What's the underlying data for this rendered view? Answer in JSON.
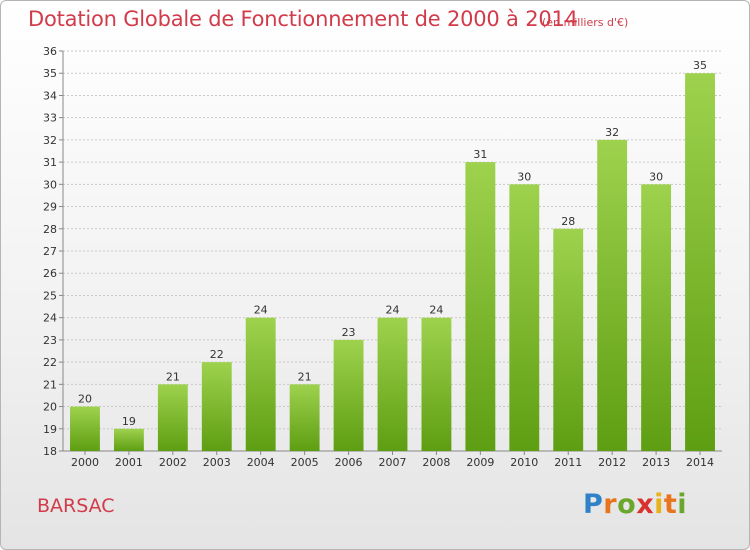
{
  "header": {
    "title": "Dotation Globale de Fonctionnement de 2000 à 2014",
    "subtitle": "(en milliers d'€)"
  },
  "footer": {
    "commune": "BARSAC",
    "logo_letters": [
      "P",
      "r",
      "o",
      "x",
      "i",
      "t",
      "i"
    ]
  },
  "colors": {
    "title": "#d23b4a",
    "bar_top": "#9ed24e",
    "bar_bottom": "#5e9e12"
  },
  "chart_data": {
    "type": "bar",
    "categories": [
      "2000",
      "2001",
      "2002",
      "2003",
      "2004",
      "2005",
      "2006",
      "2007",
      "2008",
      "2009",
      "2010",
      "2011",
      "2012",
      "2013",
      "2014"
    ],
    "values": [
      20,
      19,
      21,
      22,
      24,
      21,
      23,
      24,
      24,
      31,
      30,
      28,
      32,
      30,
      35
    ],
    "title": "Dotation Globale de Fonctionnement de 2000 à 2014",
    "ylabel": "",
    "xlabel": "",
    "ylim": [
      18,
      36
    ],
    "yticks": [
      18,
      19,
      20,
      21,
      22,
      23,
      24,
      25,
      26,
      27,
      28,
      29,
      30,
      31,
      32,
      33,
      34,
      35,
      36
    ],
    "grid": true
  }
}
